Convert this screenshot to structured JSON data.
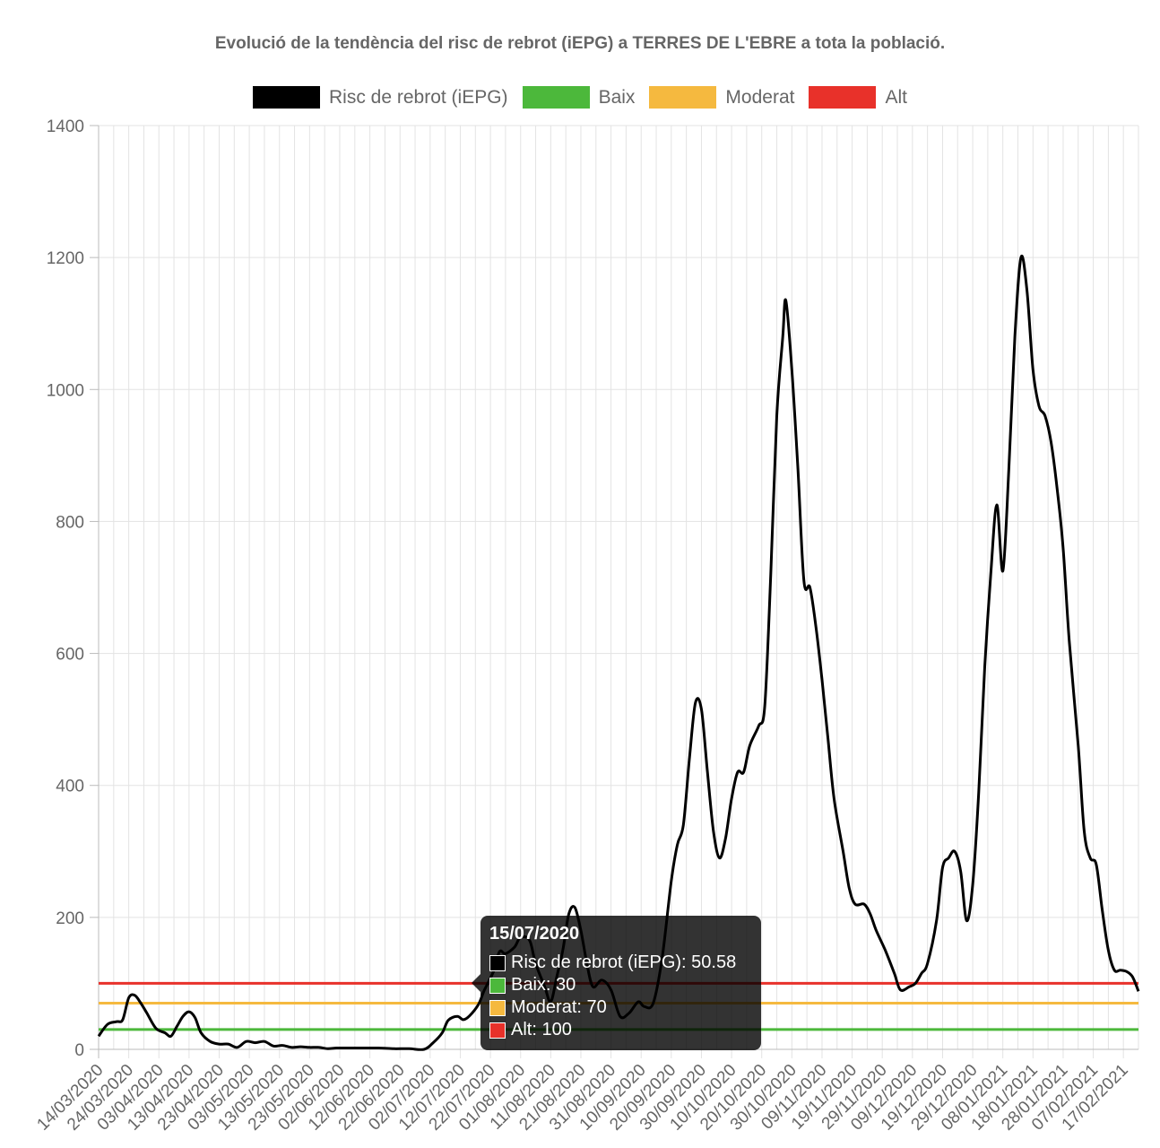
{
  "chart_data": {
    "type": "line",
    "title": "Evolució de la tendència del risc de rebrot (iEPG) a TERRES DE L'EBRE a tota la població.",
    "ylim": [
      0,
      1400
    ],
    "yticks": [
      0,
      200,
      400,
      600,
      800,
      1000,
      1200,
      1400
    ],
    "xlim": [
      "14/03/2020",
      "22/02/2021"
    ],
    "xtick_labels": [
      "14/03/2020",
      "24/03/2020",
      "03/04/2020",
      "13/04/2020",
      "23/04/2020",
      "03/05/2020",
      "13/05/2020",
      "23/05/2020",
      "02/06/2020",
      "12/06/2020",
      "22/06/2020",
      "02/07/2020",
      "12/07/2020",
      "22/07/2020",
      "01/08/2020",
      "11/08/2020",
      "21/08/2020",
      "31/08/2020",
      "10/09/2020",
      "20/09/2020",
      "30/09/2020",
      "10/10/2020",
      "20/10/2020",
      "30/10/2020",
      "09/11/2020",
      "19/11/2020",
      "29/11/2020",
      "09/12/2020",
      "19/12/2020",
      "29/12/2020",
      "08/01/2021",
      "18/01/2021",
      "28/01/2021",
      "07/02/2021",
      "17/02/2021"
    ],
    "grid": true,
    "legend_position": "top",
    "series": [
      {
        "name": "Risc de rebrot (iEPG)",
        "color": "#000000",
        "points": [
          [
            "14/03/2020",
            20
          ],
          [
            "17/03/2020",
            38
          ],
          [
            "20/03/2020",
            42
          ],
          [
            "22/03/2020",
            45
          ],
          [
            "24/03/2020",
            78
          ],
          [
            "26/03/2020",
            82
          ],
          [
            "28/03/2020",
            70
          ],
          [
            "30/03/2020",
            55
          ],
          [
            "02/04/2020",
            32
          ],
          [
            "05/04/2020",
            25
          ],
          [
            "07/04/2020",
            20
          ],
          [
            "09/04/2020",
            35
          ],
          [
            "11/04/2020",
            50
          ],
          [
            "13/04/2020",
            57
          ],
          [
            "15/04/2020",
            48
          ],
          [
            "17/04/2020",
            25
          ],
          [
            "20/04/2020",
            12
          ],
          [
            "23/04/2020",
            8
          ],
          [
            "26/04/2020",
            8
          ],
          [
            "29/04/2020",
            3
          ],
          [
            "02/05/2020",
            12
          ],
          [
            "05/05/2020",
            10
          ],
          [
            "08/05/2020",
            12
          ],
          [
            "11/05/2020",
            5
          ],
          [
            "14/05/2020",
            6
          ],
          [
            "17/05/2020",
            3
          ],
          [
            "20/05/2020",
            4
          ],
          [
            "23/05/2020",
            3
          ],
          [
            "26/05/2020",
            3
          ],
          [
            "29/05/2020",
            1
          ],
          [
            "01/06/2020",
            2
          ],
          [
            "05/06/2020",
            2
          ],
          [
            "10/06/2020",
            2
          ],
          [
            "15/06/2020",
            2
          ],
          [
            "20/06/2020",
            1
          ],
          [
            "25/06/2020",
            1
          ],
          [
            "30/06/2020",
            0
          ],
          [
            "03/07/2020",
            10
          ],
          [
            "06/07/2020",
            25
          ],
          [
            "08/07/2020",
            44
          ],
          [
            "11/07/2020",
            50
          ],
          [
            "13/07/2020",
            45
          ],
          [
            "15/07/2020",
            50.58
          ],
          [
            "18/07/2020",
            68
          ],
          [
            "20/07/2020",
            90
          ],
          [
            "23/07/2020",
            118
          ],
          [
            "25/07/2020",
            148
          ],
          [
            "27/07/2020",
            145
          ],
          [
            "30/07/2020",
            155
          ],
          [
            "01/08/2020",
            170
          ],
          [
            "04/08/2020",
            165
          ],
          [
            "06/08/2020",
            130
          ],
          [
            "09/08/2020",
            95
          ],
          [
            "11/08/2020",
            72
          ],
          [
            "13/08/2020",
            110
          ],
          [
            "15/08/2020",
            150
          ],
          [
            "17/08/2020",
            205
          ],
          [
            "19/08/2020",
            215
          ],
          [
            "21/08/2020",
            180
          ],
          [
            "23/08/2020",
            130
          ],
          [
            "25/08/2020",
            95
          ],
          [
            "28/08/2020",
            105
          ],
          [
            "31/08/2020",
            90
          ],
          [
            "03/09/2020",
            50
          ],
          [
            "06/09/2020",
            55
          ],
          [
            "09/09/2020",
            72
          ],
          [
            "11/09/2020",
            65
          ],
          [
            "14/09/2020",
            70
          ],
          [
            "17/09/2020",
            140
          ],
          [
            "20/09/2020",
            255
          ],
          [
            "22/09/2020",
            310
          ],
          [
            "24/09/2020",
            340
          ],
          [
            "26/09/2020",
            440
          ],
          [
            "28/09/2020",
            525
          ],
          [
            "30/09/2020",
            515
          ],
          [
            "02/10/2020",
            420
          ],
          [
            "04/10/2020",
            330
          ],
          [
            "06/10/2020",
            290
          ],
          [
            "08/10/2020",
            320
          ],
          [
            "10/10/2020",
            380
          ],
          [
            "12/10/2020",
            420
          ],
          [
            "14/10/2020",
            420
          ],
          [
            "16/10/2020",
            460
          ],
          [
            "19/10/2020",
            490
          ],
          [
            "21/10/2020",
            520
          ],
          [
            "23/10/2020",
            720
          ],
          [
            "25/10/2020",
            960
          ],
          [
            "27/10/2020",
            1080
          ],
          [
            "28/10/2020",
            1135
          ],
          [
            "30/10/2020",
            1030
          ],
          [
            "01/11/2020",
            880
          ],
          [
            "03/11/2020",
            710
          ],
          [
            "05/11/2020",
            700
          ],
          [
            "07/11/2020",
            640
          ],
          [
            "09/11/2020",
            560
          ],
          [
            "11/11/2020",
            470
          ],
          [
            "13/11/2020",
            380
          ],
          [
            "16/11/2020",
            300
          ],
          [
            "18/11/2020",
            245
          ],
          [
            "20/11/2020",
            220
          ],
          [
            "23/11/2020",
            220
          ],
          [
            "25/11/2020",
            205
          ],
          [
            "27/11/2020",
            180
          ],
          [
            "30/11/2020",
            150
          ],
          [
            "03/12/2020",
            115
          ],
          [
            "05/12/2020",
            90
          ],
          [
            "08/12/2020",
            95
          ],
          [
            "10/12/2020",
            100
          ],
          [
            "12/12/2020",
            115
          ],
          [
            "14/12/2020",
            130
          ],
          [
            "17/12/2020",
            195
          ],
          [
            "19/12/2020",
            275
          ],
          [
            "21/12/2020",
            290
          ],
          [
            "23/12/2020",
            300
          ],
          [
            "25/12/2020",
            270
          ],
          [
            "27/12/2020",
            195
          ],
          [
            "29/12/2020",
            250
          ],
          [
            "31/12/2020",
            390
          ],
          [
            "02/01/2021",
            580
          ],
          [
            "04/01/2021",
            720
          ],
          [
            "06/01/2021",
            825
          ],
          [
            "08/01/2021",
            725
          ],
          [
            "10/01/2021",
            880
          ],
          [
            "12/01/2021",
            1080
          ],
          [
            "14/01/2021",
            1200
          ],
          [
            "16/01/2021",
            1150
          ],
          [
            "18/01/2021",
            1030
          ],
          [
            "20/01/2021",
            975
          ],
          [
            "22/01/2021",
            960
          ],
          [
            "24/01/2021",
            920
          ],
          [
            "26/01/2021",
            850
          ],
          [
            "28/01/2021",
            760
          ],
          [
            "30/01/2021",
            620
          ],
          [
            "02/02/2021",
            460
          ],
          [
            "04/02/2021",
            330
          ],
          [
            "06/02/2021",
            290
          ],
          [
            "08/02/2021",
            280
          ],
          [
            "10/02/2021",
            210
          ],
          [
            "12/02/2021",
            150
          ],
          [
            "14/02/2021",
            120
          ],
          [
            "16/02/2021",
            120
          ],
          [
            "18/02/2021",
            118
          ],
          [
            "20/02/2021",
            110
          ],
          [
            "22/02/2021",
            88
          ]
        ]
      },
      {
        "name": "Baix",
        "color": "#4CB83B",
        "constant": 30
      },
      {
        "name": "Moderat",
        "color": "#F5B93F",
        "constant": 70
      },
      {
        "name": "Alt",
        "color": "#E8312A",
        "constant": 100
      }
    ]
  },
  "tooltip": {
    "title": "15/07/2020",
    "rows": [
      {
        "label": "Risc de rebrot (iEPG): 50.58",
        "color": "#000000"
      },
      {
        "label": "Baix: 30",
        "color": "#4CB83B"
      },
      {
        "label": "Moderat: 70",
        "color": "#F5B93F"
      },
      {
        "label": "Alt: 100",
        "color": "#E8312A"
      }
    ]
  }
}
